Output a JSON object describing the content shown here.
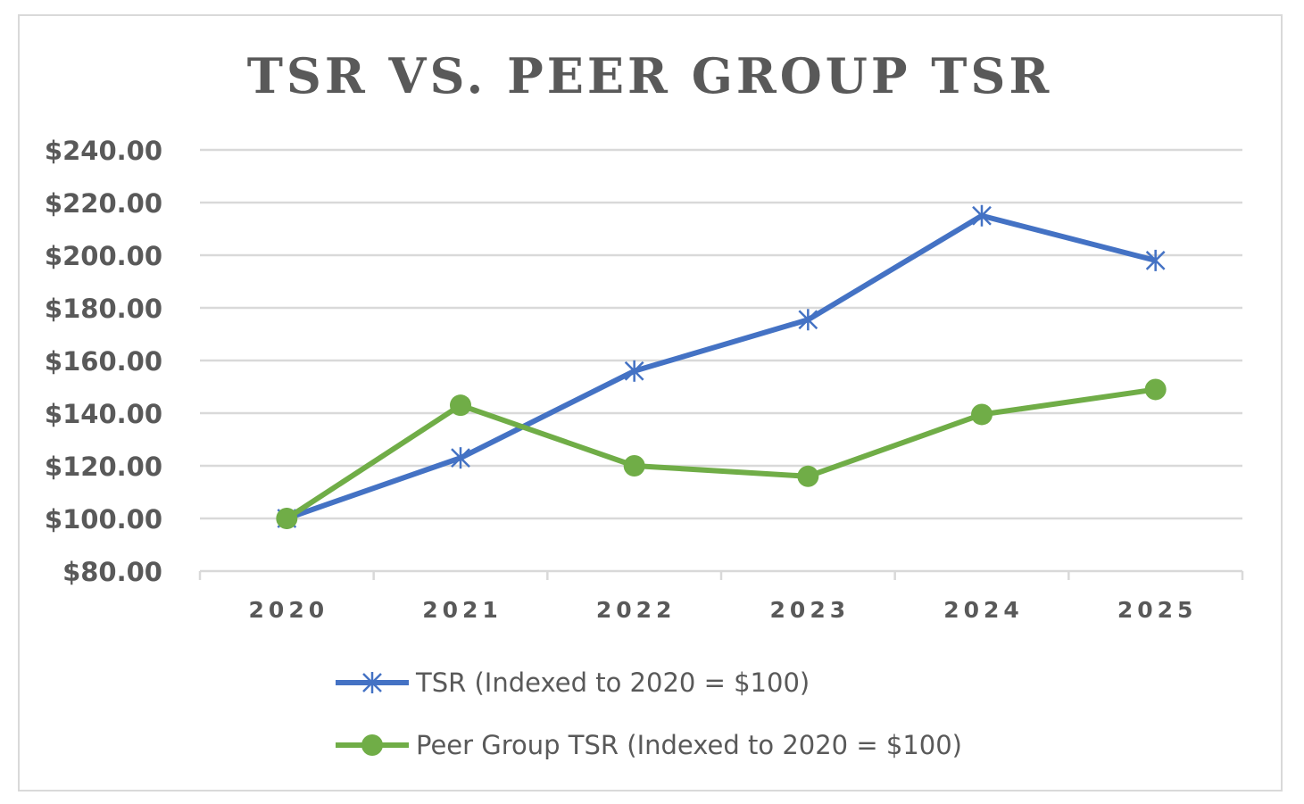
{
  "chart_data": {
    "type": "line",
    "title": "TSR VS. PEER GROUP TSR",
    "xlabel": "",
    "ylabel": "",
    "categories": [
      "2020",
      "2021",
      "2022",
      "2023",
      "2024",
      "2025"
    ],
    "y_ticks": [
      "$80.00",
      "$100.00",
      "$120.00",
      "$140.00",
      "$160.00",
      "$180.00",
      "$200.00",
      "$220.00",
      "$240.00"
    ],
    "ylim": [
      80,
      240
    ],
    "grid": true,
    "legend_position": "bottom",
    "series": [
      {
        "name": "TSR (Indexed to 2020 = $100)",
        "values": [
          100,
          123,
          156,
          175.5,
          215,
          198
        ],
        "color": "#4472c4",
        "marker": "star"
      },
      {
        "name": "Peer Group TSR (Indexed to 2020 = $100)",
        "values": [
          100,
          143,
          120,
          116,
          139.5,
          149
        ],
        "color": "#70ad47",
        "marker": "circle"
      }
    ]
  },
  "colors": {
    "title": "#595959",
    "axis_text": "#595959",
    "gridline": "#d9d9d9",
    "frame": "#d9d9d9"
  }
}
